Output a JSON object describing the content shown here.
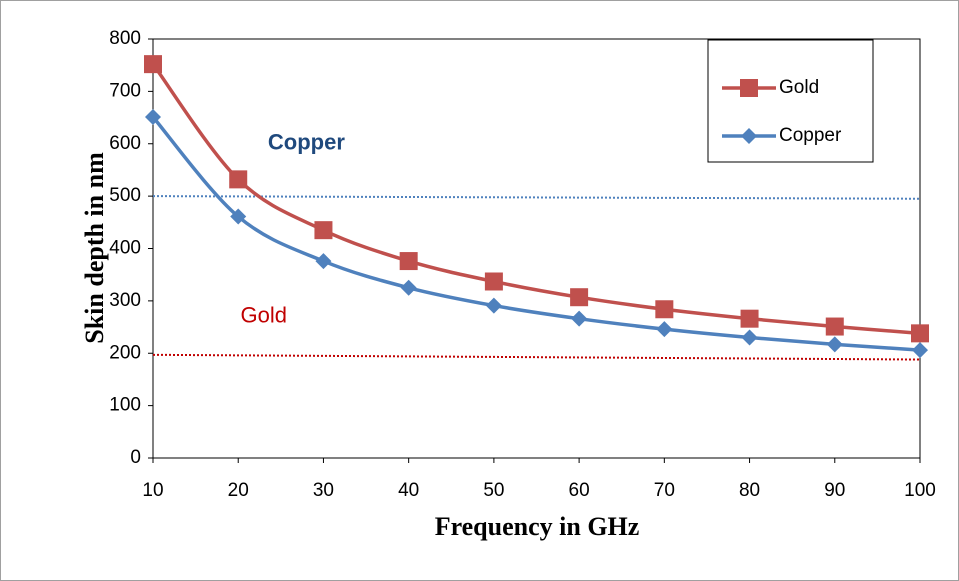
{
  "chart_data": {
    "type": "line",
    "x_label": "Frequency in GHz",
    "y_label": "Skin depth in nm",
    "x": [
      10,
      20,
      30,
      40,
      50,
      60,
      70,
      80,
      90,
      100
    ],
    "series": [
      {
        "name": "Gold",
        "color": "#c0504d",
        "marker": "square",
        "values": [
          752,
          532,
          435,
          376,
          337,
          307,
          284,
          266,
          251,
          238
        ]
      },
      {
        "name": "Copper",
        "color": "#4f81bd",
        "marker": "diamond",
        "values": [
          651,
          461,
          376,
          325,
          291,
          266,
          246,
          230,
          217,
          206
        ]
      }
    ],
    "xlim": [
      10,
      100
    ],
    "xticks": [
      10,
      20,
      30,
      40,
      50,
      60,
      70,
      80,
      90,
      100
    ],
    "ylim": [
      0,
      800
    ],
    "yticks": [
      0,
      100,
      200,
      300,
      400,
      500,
      600,
      700,
      800
    ],
    "grid": false,
    "legend": "upper right",
    "annotations": [
      {
        "text": "Copper",
        "color": "#1f497d",
        "x": 28,
        "y": 600,
        "bold": true
      },
      {
        "text": "Gold",
        "color": "#c00000",
        "x": 23,
        "y": 270,
        "bold": false
      }
    ],
    "reference_lines": [
      {
        "color": "#4f81bd",
        "y": [
          500,
          495
        ]
      },
      {
        "color": "#c00000",
        "y": [
          197,
          188
        ]
      }
    ]
  }
}
